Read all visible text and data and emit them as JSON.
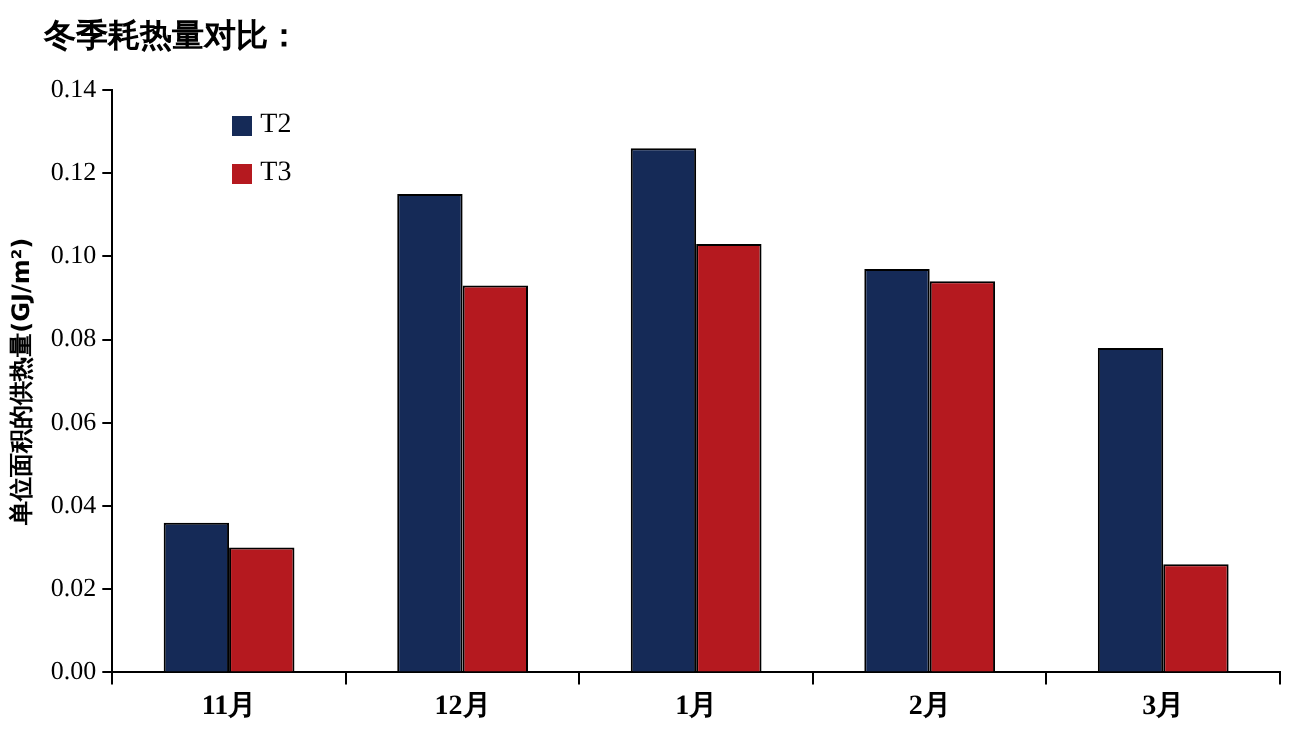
{
  "chart_data": {
    "type": "bar",
    "title": "冬季耗热量对比：",
    "ylabel": "单位面积的供热量(GJ/m²)",
    "categories": [
      "11月",
      "12月",
      "1月",
      "2月",
      "3月"
    ],
    "series": [
      {
        "name": "T2",
        "color": "#152a57",
        "values": [
          0.036,
          0.115,
          0.126,
          0.097,
          0.078
        ]
      },
      {
        "name": "T3",
        "color": "#b5191f",
        "values": [
          0.03,
          0.093,
          0.103,
          0.094,
          0.026
        ]
      }
    ],
    "ylim": [
      0,
      0.14
    ],
    "yticks": [
      {
        "value": 0,
        "label": "0.00"
      },
      {
        "value": 0.02,
        "label": "0.02"
      },
      {
        "value": 0.04,
        "label": "0.04"
      },
      {
        "value": 0.06,
        "label": "0.06"
      },
      {
        "value": 0.08,
        "label": "0.08"
      },
      {
        "value": 0.1,
        "label": "0.10"
      },
      {
        "value": 0.12,
        "label": "0.12"
      },
      {
        "value": 0.14,
        "label": "0.14"
      }
    ],
    "grid": false,
    "legend": "top left"
  }
}
